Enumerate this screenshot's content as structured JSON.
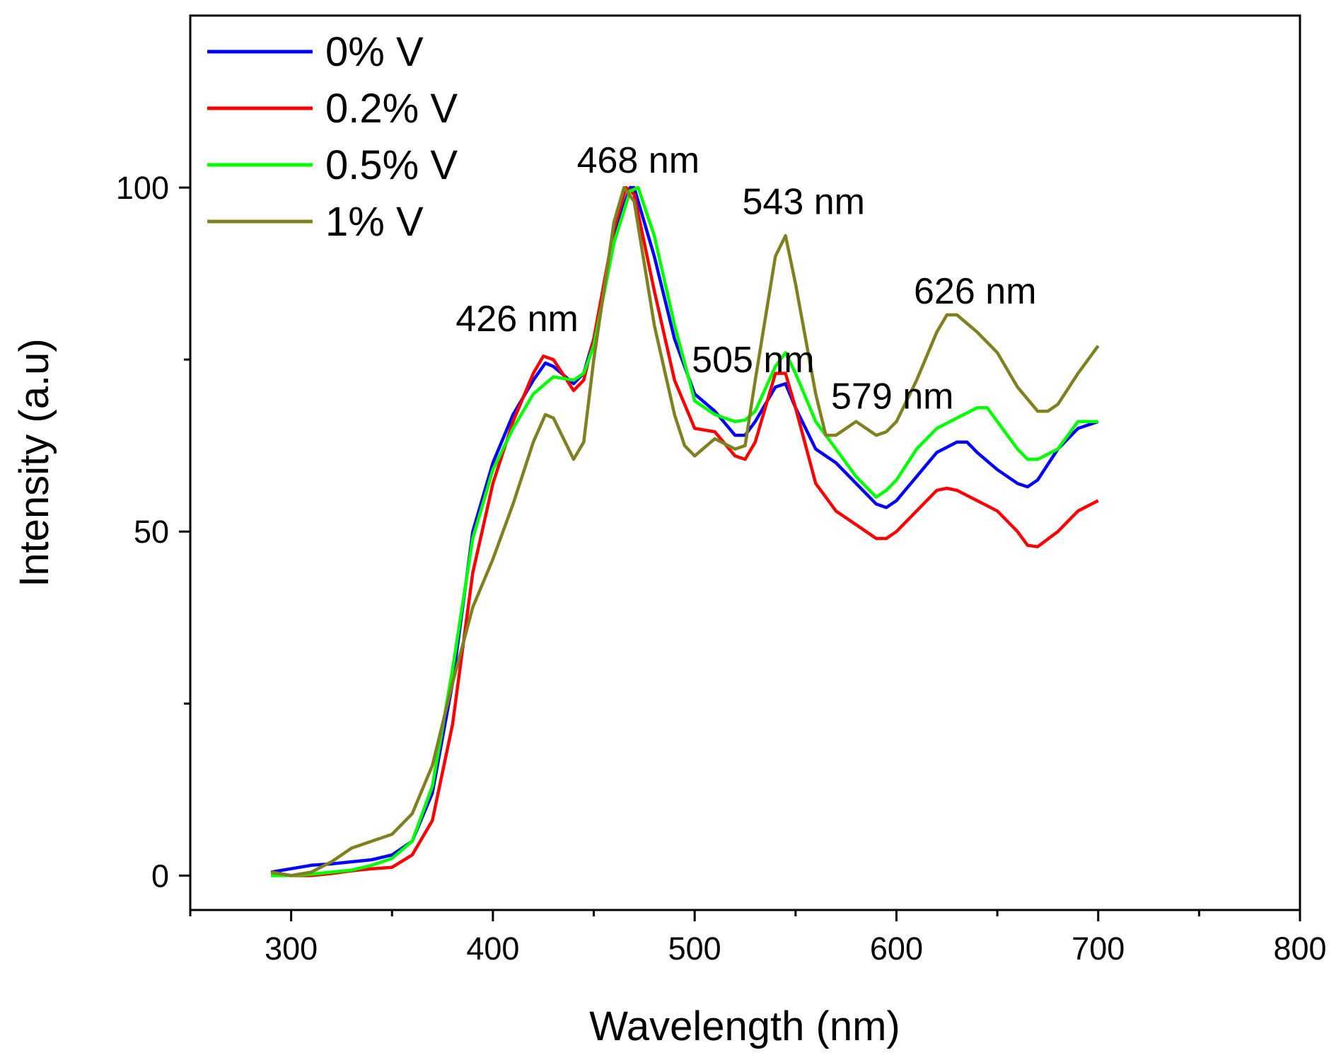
{
  "chart_data": {
    "type": "line",
    "title": "",
    "xlabel": "Wavelength (nm)",
    "ylabel": "Intensity (a.u)",
    "xlim": [
      250,
      800
    ],
    "ylim": [
      -5,
      125
    ],
    "xticks": [
      300,
      400,
      500,
      600,
      700,
      800
    ],
    "xminor": [
      250,
      350,
      450,
      550,
      650,
      750
    ],
    "yticks": [
      0,
      50,
      100
    ],
    "yminor": [
      25,
      75
    ],
    "grid": false,
    "legend_position": "top-left",
    "series": [
      {
        "name": "0% V",
        "color": "#0000ff",
        "x": [
          290,
          300,
          310,
          320,
          330,
          340,
          350,
          360,
          370,
          380,
          390,
          400,
          410,
          420,
          426,
          430,
          440,
          445,
          450,
          460,
          468,
          470,
          480,
          490,
          500,
          510,
          520,
          525,
          530,
          540,
          545,
          550,
          560,
          570,
          580,
          590,
          595,
          600,
          610,
          620,
          630,
          635,
          640,
          650,
          660,
          665,
          670,
          680,
          690,
          700
        ],
        "y": [
          0.5,
          1,
          1.5,
          1.7,
          2,
          2.3,
          3,
          5,
          12,
          28,
          50,
          60,
          67,
          72,
          74.5,
          74,
          71.5,
          73,
          78,
          93,
          100,
          100,
          90,
          78,
          70,
          67.5,
          64,
          64,
          66,
          71,
          71.5,
          68,
          62,
          60,
          57,
          54,
          53.5,
          54.5,
          58,
          61.5,
          63,
          63,
          61.5,
          59,
          57,
          56.5,
          57.5,
          62,
          65,
          66
        ]
      },
      {
        "name": "0.2% V",
        "color": "#ff0000",
        "x": [
          290,
          300,
          310,
          320,
          330,
          340,
          350,
          360,
          370,
          380,
          390,
          400,
          410,
          420,
          425,
          430,
          440,
          445,
          450,
          460,
          466,
          470,
          480,
          490,
          500,
          510,
          520,
          525,
          530,
          540,
          545,
          550,
          560,
          570,
          580,
          590,
          595,
          600,
          610,
          620,
          625,
          630,
          640,
          650,
          660,
          665,
          670,
          680,
          690,
          700
        ],
        "y": [
          0.5,
          0,
          0,
          0.3,
          0.7,
          1,
          1.2,
          3,
          8,
          22,
          44,
          57,
          66,
          73,
          75.5,
          75,
          70.5,
          72,
          78,
          94,
          100,
          99,
          85,
          72,
          65,
          64.5,
          61,
          60.5,
          63,
          73,
          73,
          68,
          57,
          53,
          51,
          49,
          49,
          50,
          53,
          56,
          56.3,
          56,
          54.5,
          53,
          50,
          48,
          47.8,
          50,
          53,
          54.5
        ]
      },
      {
        "name": "0.5% V",
        "color": "#00ff00",
        "x": [
          290,
          300,
          310,
          320,
          330,
          340,
          350,
          360,
          370,
          380,
          390,
          400,
          410,
          420,
          430,
          440,
          445,
          450,
          460,
          468,
          472,
          480,
          490,
          500,
          510,
          520,
          525,
          530,
          540,
          545,
          550,
          560,
          570,
          580,
          590,
          595,
          600,
          610,
          620,
          630,
          640,
          645,
          650,
          660,
          665,
          670,
          680,
          690,
          700
        ],
        "y": [
          0,
          0,
          0.2,
          0.5,
          0.8,
          1.5,
          2.5,
          5,
          13,
          30,
          49,
          59,
          65,
          70,
          72.5,
          72,
          73,
          77,
          92,
          99.5,
          100,
          93,
          80,
          69,
          67,
          66,
          66.2,
          67.5,
          74,
          76,
          73,
          66,
          62,
          58,
          55,
          56,
          57.5,
          62,
          65,
          66.5,
          68,
          68,
          66,
          62,
          60.5,
          60.5,
          62,
          66,
          66
        ]
      },
      {
        "name": "1% V",
        "color": "#808020",
        "x": [
          290,
          300,
          310,
          320,
          330,
          340,
          350,
          360,
          370,
          380,
          390,
          400,
          410,
          420,
          426,
          430,
          440,
          445,
          450,
          460,
          465,
          470,
          480,
          490,
          495,
          500,
          510,
          520,
          525,
          530,
          540,
          545,
          550,
          560,
          565,
          570,
          580,
          590,
          595,
          600,
          610,
          620,
          625,
          630,
          640,
          650,
          660,
          670,
          675,
          680,
          690,
          700
        ],
        "y": [
          0.5,
          0,
          0.5,
          2,
          4,
          5,
          6,
          9,
          16,
          28,
          39,
          46,
          54,
          63,
          67,
          66.5,
          60.5,
          63,
          75,
          95,
          100,
          98,
          80,
          67,
          62.5,
          61,
          63.5,
          62,
          62.5,
          72,
          90,
          93,
          86,
          70,
          64,
          64,
          66,
          64,
          64.5,
          66,
          72,
          79,
          81.5,
          81.5,
          79,
          76,
          71,
          67.5,
          67.5,
          68.5,
          73,
          77
        ]
      }
    ],
    "annotations": [
      {
        "text": "426 nm",
        "x": 412,
        "y": 81
      },
      {
        "text": "468 nm",
        "x": 472,
        "y": 104
      },
      {
        "text": "543 nm",
        "x": 554,
        "y": 98
      },
      {
        "text": "505 nm",
        "x": 529,
        "y": 75
      },
      {
        "text": "579 nm",
        "x": 598,
        "y": 69.7
      },
      {
        "text": "626 nm",
        "x": 639,
        "y": 85
      }
    ]
  }
}
